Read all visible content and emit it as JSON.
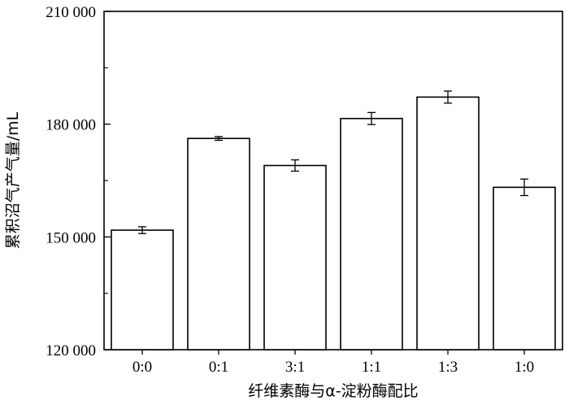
{
  "chart_data": {
    "type": "bar",
    "title": "",
    "xlabel": "纤维素酶与α-淀粉酶配比",
    "ylabel": "累积沼气产气量/mL",
    "categories": [
      "0:0",
      "0:1",
      "3:1",
      "1:1",
      "1:3",
      "1:0"
    ],
    "values": [
      151800,
      176200,
      169000,
      181500,
      187200,
      163200
    ],
    "errors": [
      900,
      500,
      1500,
      1600,
      1600,
      2200
    ],
    "ylim": [
      120000,
      210000
    ],
    "yticks": [
      120000,
      150000,
      180000,
      210000
    ],
    "ytick_labels": [
      "120 000",
      "150 000",
      "180 000",
      "210 000"
    ],
    "grid": false,
    "bar_color": "#ffffff",
    "edge_color": "#000000"
  }
}
